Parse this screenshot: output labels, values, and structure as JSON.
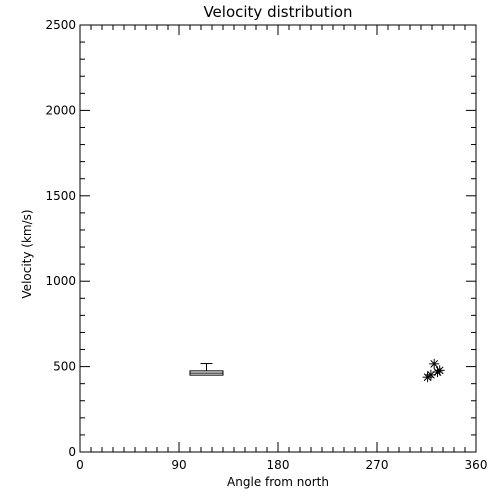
{
  "chart_data": {
    "type": "box+scatter",
    "title": "Velocity distribution",
    "xlabel": "Angle from north",
    "ylabel": "Velocity (km/s)",
    "xlim": [
      0,
      360
    ],
    "ylim": [
      0,
      2500
    ],
    "x_major_ticks": [
      0,
      90,
      180,
      270,
      360
    ],
    "x_minor_step": 10,
    "y_major_ticks": [
      0,
      500,
      1000,
      1500,
      2000,
      2500
    ],
    "y_minor_step": 100,
    "box": {
      "x_min": 100,
      "x_max": 130,
      "q1": 450,
      "median": 462,
      "q3": 475,
      "whisker_high": 518
    },
    "points": [
      {
        "x": 316,
        "y": 438
      },
      {
        "x": 319,
        "y": 452
      },
      {
        "x": 322,
        "y": 516
      },
      {
        "x": 325,
        "y": 468
      },
      {
        "x": 327,
        "y": 478
      }
    ],
    "grid": false,
    "color": "#000000"
  }
}
